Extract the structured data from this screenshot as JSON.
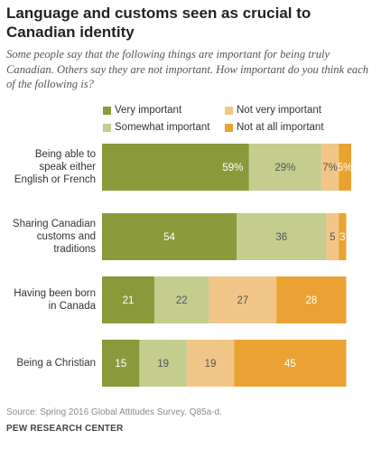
{
  "title": "Language and customs seen as crucial to Canadian identity",
  "subtitle": "Some people say that the following things are important for being truly Canadian. Others say they are not important. How important do you think each of the following is?",
  "source": "Source: Spring 2016 Global Attitudes Survey. Q85a-d.",
  "organization": "PEW RESEARCH CENTER",
  "colors": {
    "very": "#8a9a3b",
    "somewhat": "#c4cc8e",
    "not_very": "#f2c686",
    "not_at_all": "#eaa332"
  },
  "chart_data": {
    "type": "bar",
    "orientation": "horizontal",
    "stacked": true,
    "categories": [
      [
        "Being able to",
        "speak either",
        "English or French"
      ],
      [
        "Sharing Canadian",
        "customs and",
        "traditions"
      ],
      [
        "Having been born",
        "in Canada"
      ],
      [
        "Being a Christian"
      ]
    ],
    "series": [
      {
        "name": "Very important",
        "color": "#8a9a3b",
        "values": [
          59,
          54,
          21,
          15
        ],
        "labels": [
          "59%",
          "54",
          "21",
          "15"
        ]
      },
      {
        "name": "Somewhat important",
        "color": "#c4cc8e",
        "values": [
          29,
          36,
          22,
          19
        ],
        "labels": [
          "29%",
          "36",
          "22",
          "19"
        ]
      },
      {
        "name": "Not very important",
        "color": "#f2c686",
        "values": [
          7,
          5,
          27,
          19
        ],
        "labels": [
          "7%",
          "5",
          "27",
          "19"
        ]
      },
      {
        "name": "Not at all important",
        "color": "#eaa332",
        "values": [
          5,
          3,
          28,
          45
        ],
        "labels": [
          "5%",
          "3",
          "28",
          "45"
        ]
      }
    ],
    "xlim": [
      0,
      100
    ],
    "legend": "top"
  }
}
